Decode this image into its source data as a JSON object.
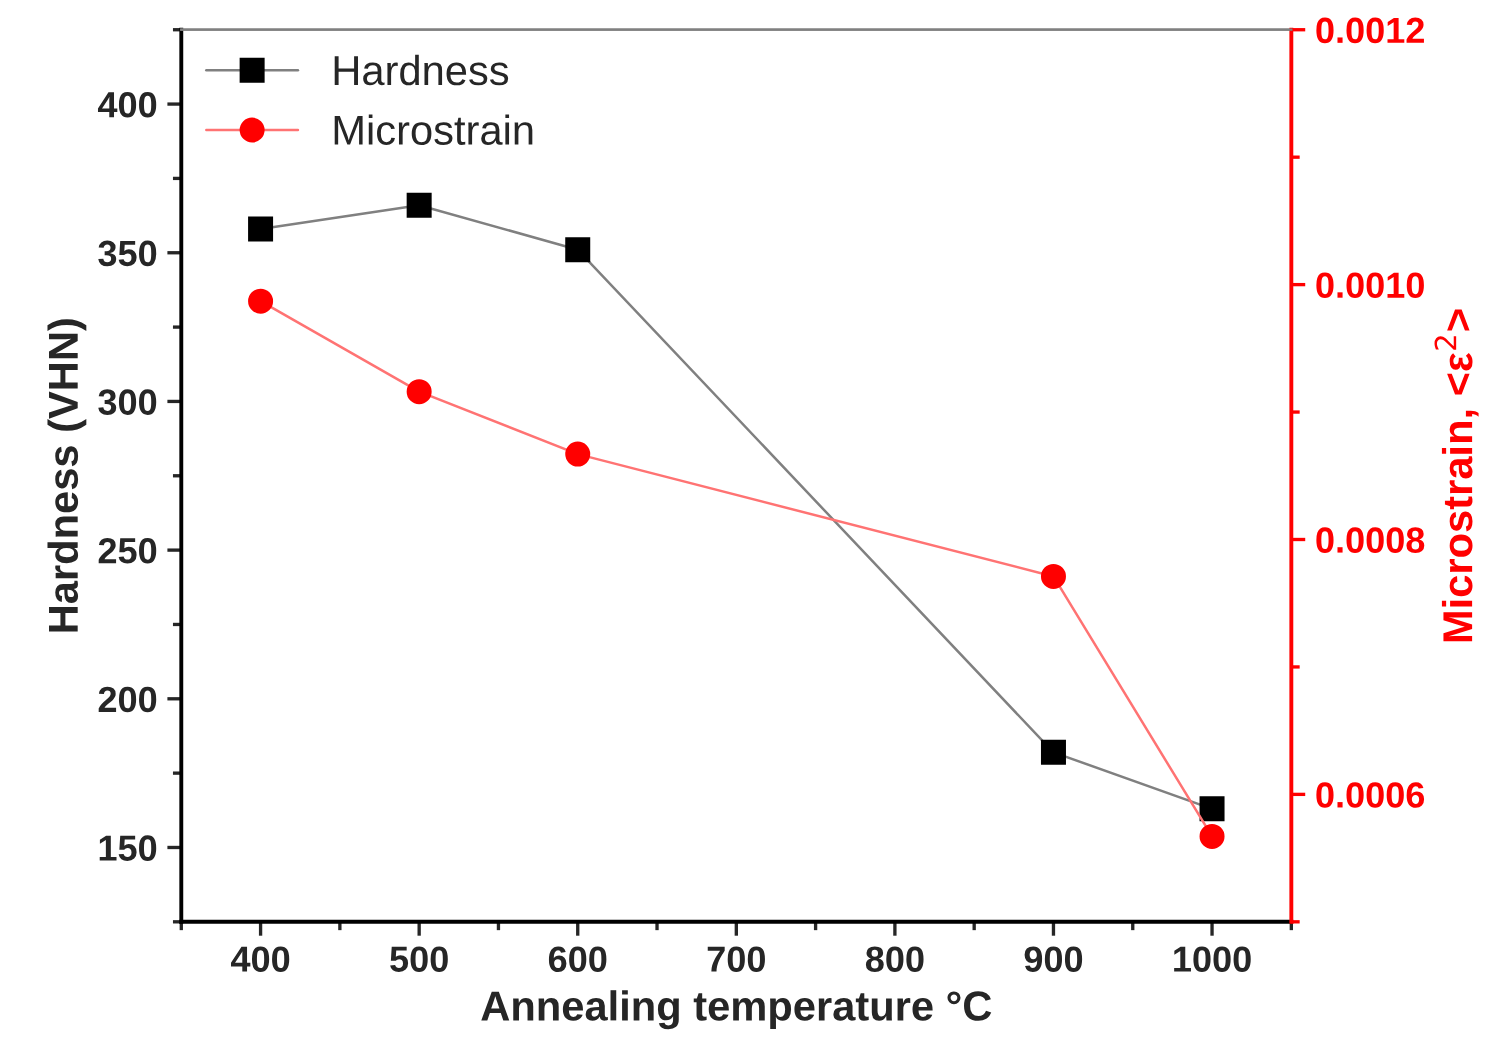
{
  "chart_data": {
    "type": "line",
    "xlabel": "Annealing temperature °C",
    "ylabel": "Hardness (VHN)",
    "y2label": "Microstrain, <ε$^{2}$>",
    "x": [
      400,
      500,
      600,
      900,
      1000
    ],
    "series": [
      {
        "name": "Hardness",
        "color": "#000000",
        "marker": "square",
        "values": [
          358,
          366,
          351,
          182,
          163
        ]
      },
      {
        "name": "Microstrain",
        "color": "#ff0000",
        "marker": "circle",
        "axis": "y2",
        "values": [
          0.000987,
          0.000916,
          0.000867,
          0.000771,
          0.000567
        ]
      }
    ],
    "xlim": [
      350,
      1050
    ],
    "xticks": [
      400,
      500,
      600,
      700,
      800,
      900,
      1000
    ],
    "ylim": [
      125,
      425
    ],
    "yticks": [
      150,
      200,
      250,
      300,
      350,
      400
    ],
    "y2lim": [
      0.0005,
      0.0012
    ],
    "y2ticks": [
      {
        "value": 0.0006,
        "label": "0.0006"
      },
      {
        "value": 0.0008,
        "label": "0.0008"
      },
      {
        "value": 0.001,
        "label": "0.0010"
      },
      {
        "value": 0.0012,
        "label": "0.0012"
      }
    ],
    "legend": "top left",
    "grid": false,
    "line_style": "solid"
  }
}
